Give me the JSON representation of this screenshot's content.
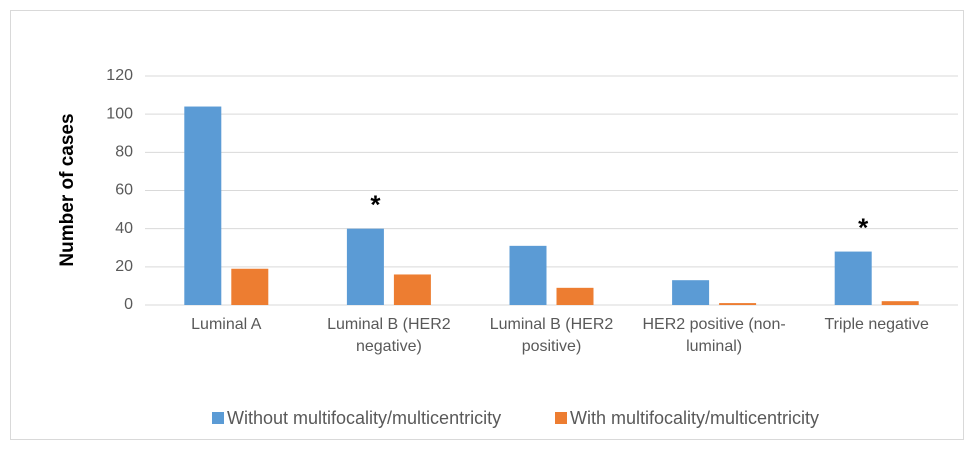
{
  "chart_data": {
    "type": "bar",
    "y_axis_label": "Number of cases",
    "categories": [
      "Luminal A",
      "Luminal B (HER2 negative)",
      "Luminal B (HER2 positive)",
      "HER2 positive (non-luminal)",
      "Triple negative"
    ],
    "series": [
      {
        "name": "Without multifocality/multicentricity",
        "color": "#5b9bd5",
        "values": [
          104,
          40,
          31,
          13,
          28
        ]
      },
      {
        "name": "With multifocality/multicentricity",
        "color": "#ed7d31",
        "values": [
          19,
          16,
          9,
          1,
          2
        ]
      }
    ],
    "annotations": [
      {
        "text": "*",
        "category": "Luminal B (HER2 negative)",
        "series": "Without multifocality/multicentricity"
      },
      {
        "text": "*",
        "category": "Triple negative",
        "series": "Without multifocality/multicentricity"
      }
    ],
    "ylim": [
      0,
      120
    ],
    "yticks": [
      0,
      20,
      40,
      60,
      80,
      100,
      120
    ],
    "grid": true,
    "legend": "bottom"
  }
}
